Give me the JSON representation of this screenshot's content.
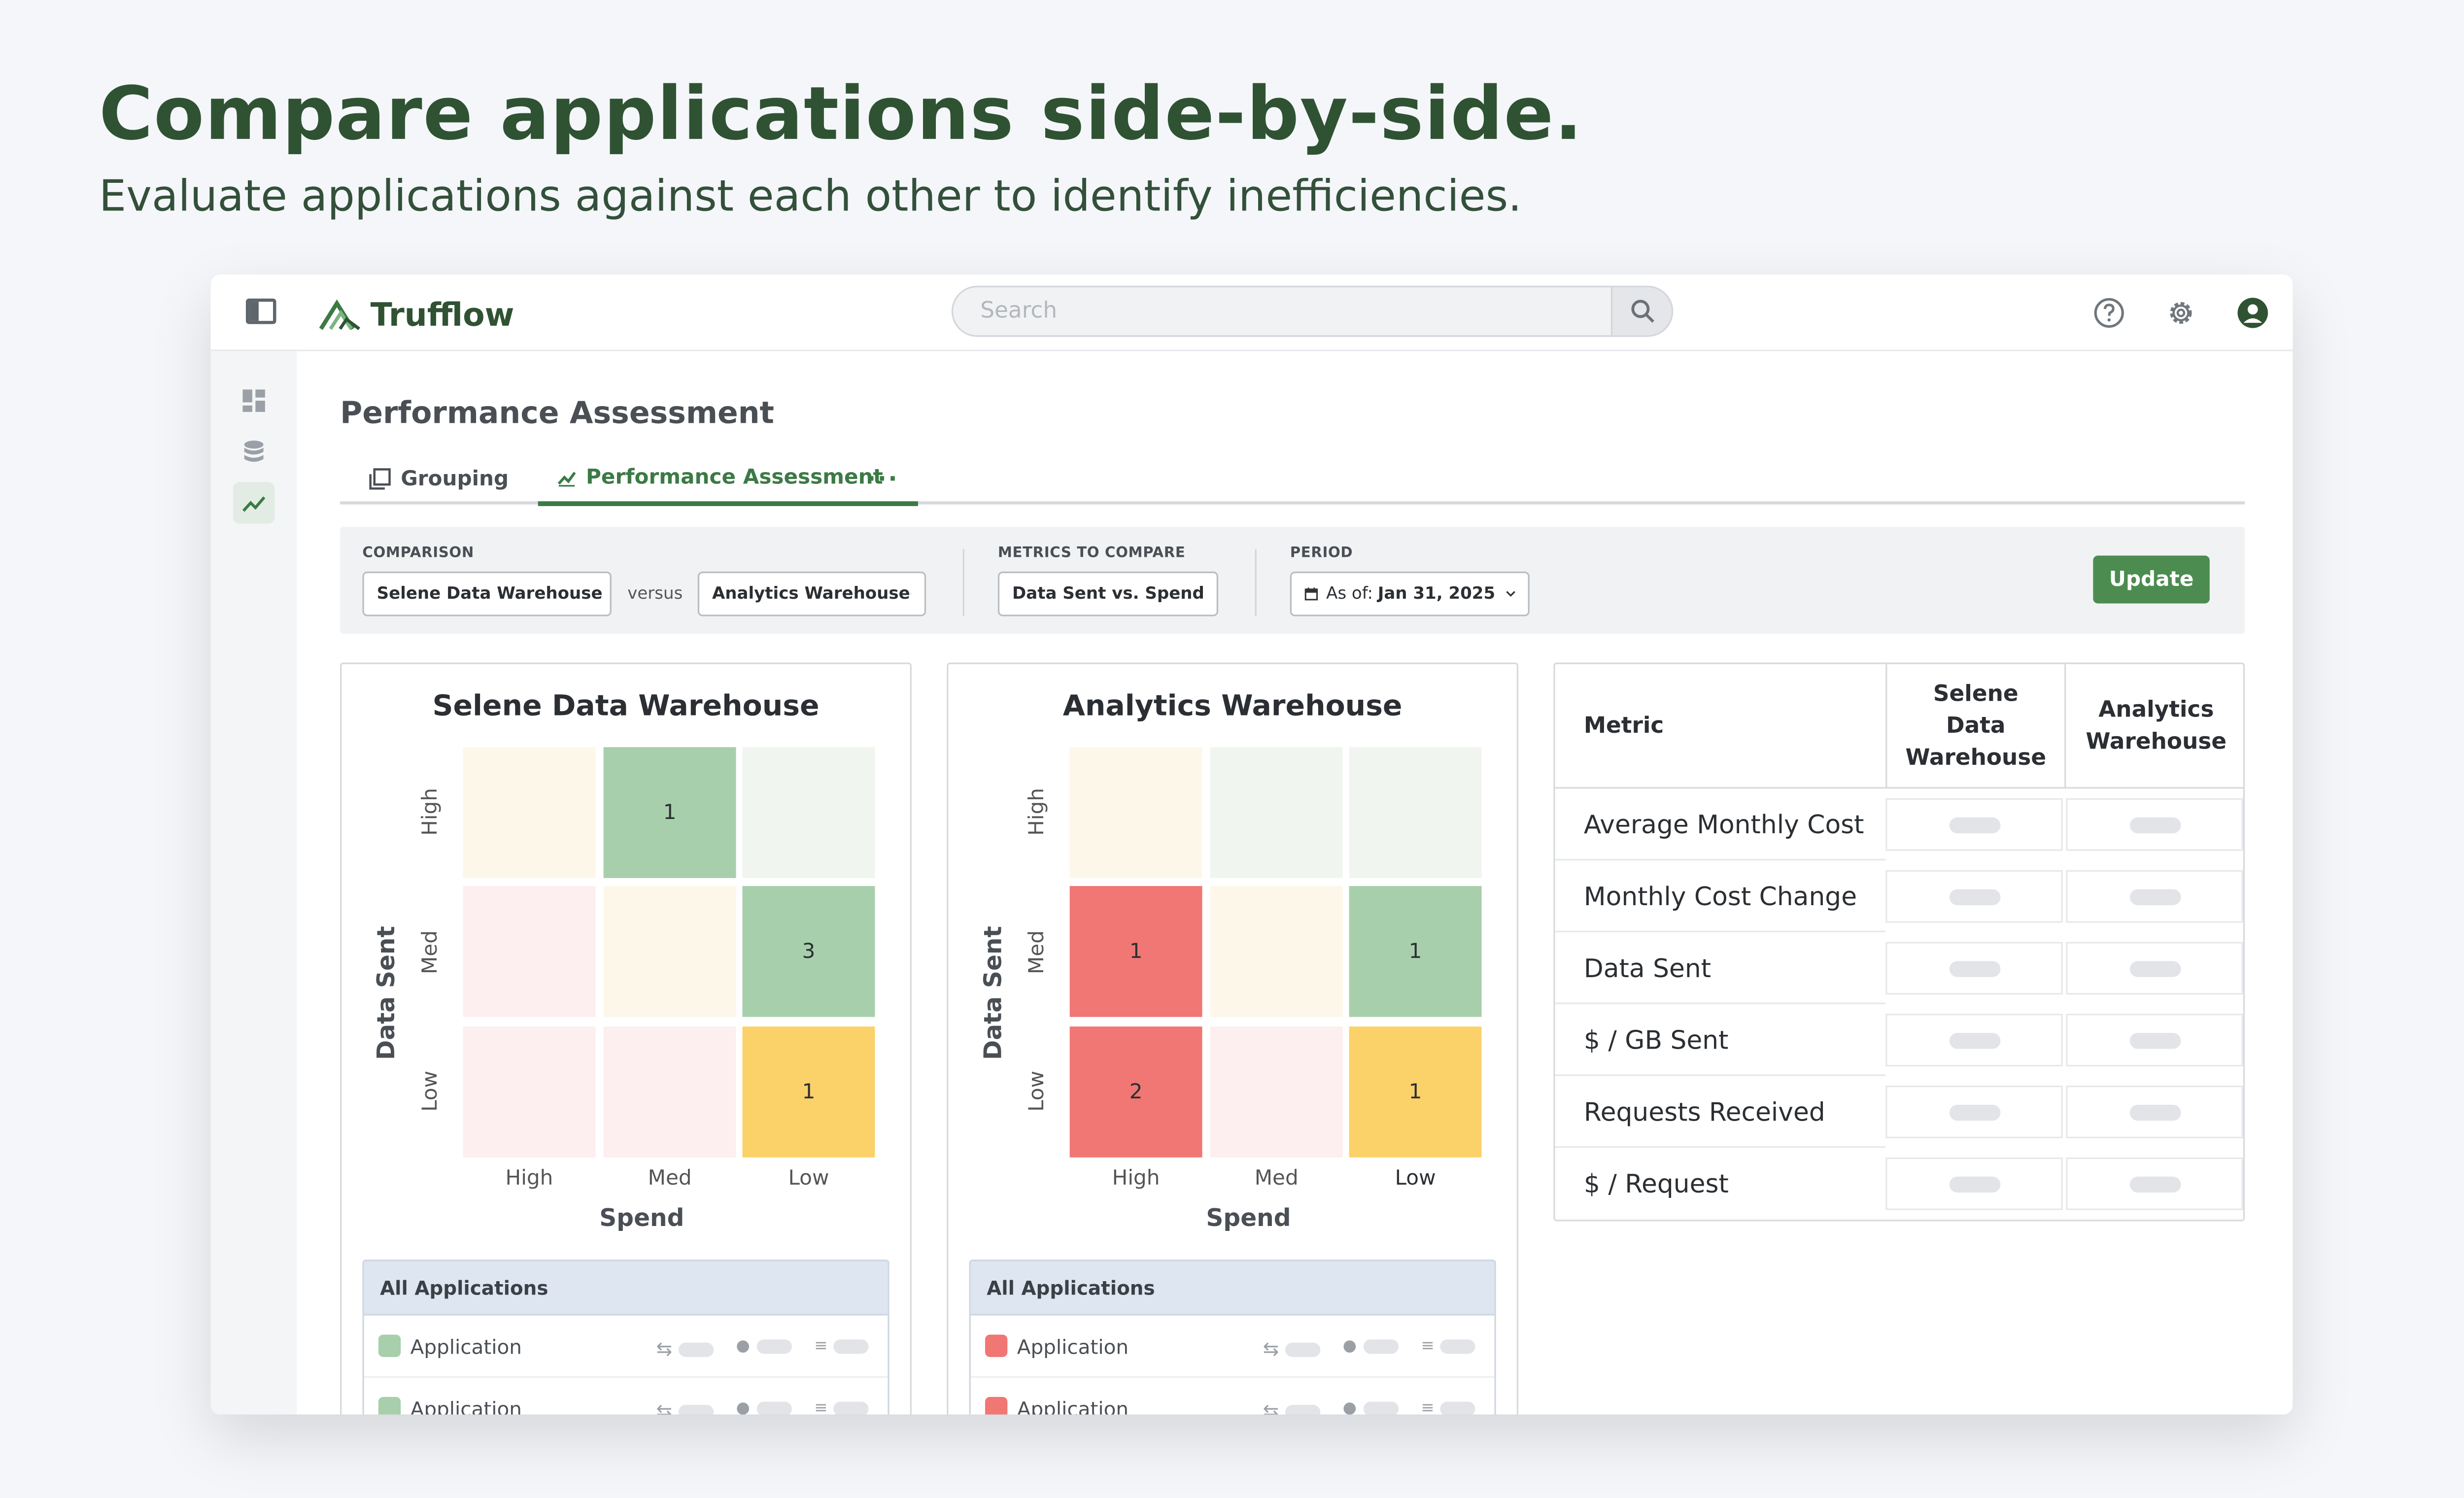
{
  "hero": {
    "title": "Compare applications side-by-side.",
    "subtitle": "Evaluate applications against each other to identify inefficiencies."
  },
  "topbar": {
    "app_name": "Trufflow",
    "search_placeholder": "Search"
  },
  "page": {
    "title": "Performance Assessment",
    "tabs": [
      {
        "label": "Grouping"
      },
      {
        "label": "Performance Assessment"
      }
    ],
    "more_label": "···"
  },
  "filters": {
    "comparison_label": "COMPARISON",
    "comparison_a": "Selene Data Warehouse",
    "versus_label": "versus",
    "comparison_b": "Analytics Warehouse",
    "metrics_label": "METRICS TO COMPARE",
    "metrics_value": "Data Sent vs. Spend",
    "period_label": "PERIOD",
    "period_prefix": "As of:",
    "period_value": "Jan 31, 2025",
    "update_label": "Update"
  },
  "colors": {
    "brand": "#2f5233",
    "accent": "#3c7a45",
    "green": "#a8cfac",
    "red": "#f07774",
    "yellow": "#fbd16a"
  },
  "matrices": [
    {
      "title": "Selene Data Warehouse",
      "y_axis": "Data Sent",
      "x_axis": "Spend",
      "y_labels": [
        "High",
        "Med",
        "Low"
      ],
      "x_labels": [
        "High",
        "Med",
        "Low"
      ],
      "cells": [
        [
          {
            "v": "",
            "c": "#fdf7ea"
          },
          {
            "v": "1",
            "c": "#a8cfac"
          },
          {
            "v": "",
            "c": "#f0f6ef"
          }
        ],
        [
          {
            "v": "",
            "c": "#fdeeef"
          },
          {
            "v": "",
            "c": "#fdf7ea"
          },
          {
            "v": "3",
            "c": "#a8cfac"
          }
        ],
        [
          {
            "v": "",
            "c": "#fdeeef"
          },
          {
            "v": "",
            "c": "#fdeeef"
          },
          {
            "v": "1",
            "c": "#fbd16a"
          }
        ]
      ],
      "apps_header": "All Applications",
      "apps": [
        {
          "name": "Application",
          "color": "#a8cfac"
        },
        {
          "name": "Application",
          "color": "#a8cfac"
        }
      ]
    },
    {
      "title": "Analytics Warehouse",
      "y_axis": "Data Sent",
      "x_axis": "Spend",
      "y_labels": [
        "High",
        "Med",
        "Low"
      ],
      "x_labels": [
        "High",
        "Med",
        "Low"
      ],
      "cells": [
        [
          {
            "v": "",
            "c": "#fdf7ea"
          },
          {
            "v": "",
            "c": "#f0f6ef"
          },
          {
            "v": "",
            "c": "#f0f6ef"
          }
        ],
        [
          {
            "v": "1",
            "c": "#f07774"
          },
          {
            "v": "",
            "c": "#fdf7ea"
          },
          {
            "v": "1",
            "c": "#a8cfac"
          }
        ],
        [
          {
            "v": "2",
            "c": "#f07774"
          },
          {
            "v": "",
            "c": "#fdeeef"
          },
          {
            "v": "1",
            "c": "#fbd16a"
          }
        ]
      ],
      "apps_header": "All Applications",
      "apps": [
        {
          "name": "Application",
          "color": "#f07774"
        },
        {
          "name": "Application",
          "color": "#f07774"
        }
      ]
    }
  ],
  "metrics_table": {
    "headers": [
      "Metric",
      "Selene Data Warehouse",
      "Analytics Warehouse"
    ],
    "rows": [
      "Average Monthly Cost",
      "Monthly Cost Change",
      "Data Sent",
      "$ / GB Sent",
      "Requests Received",
      "$ / Request"
    ]
  }
}
